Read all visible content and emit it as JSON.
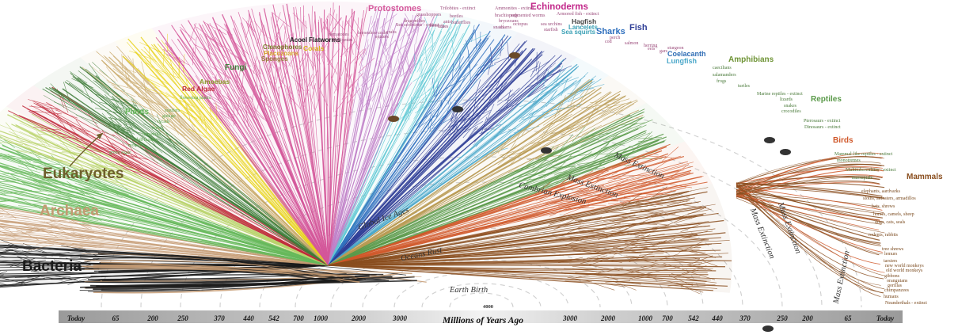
{
  "diagram": {
    "main_groups": {
      "bacteria": "Bacteria",
      "archaea": "Archaea",
      "eukaryotes": "Eukaryotes"
    },
    "clades": {
      "plants": "Plants",
      "red_algae": "Red Algae",
      "amoebas": "Amoebas",
      "fungi": "Fungi",
      "sponges": "Sponges",
      "placozoans": "Placozoans",
      "ctenophores": "Ctenophores",
      "acoel_flatworms": "Acoel Flatworms",
      "corals": "Corals",
      "protostomes": "Protostomes",
      "echinoderms": "Echinoderms",
      "hagfish": "Hagfish",
      "lancelets": "Lancelets",
      "sea_squirts": "Sea squirts",
      "sharks": "Sharks",
      "fish": "Fish",
      "coelacanth": "Coelacanth",
      "lungfish": "Lungfish",
      "amphibians": "Amphibians",
      "reptiles": "Reptiles",
      "birds": "Birds",
      "mammals": "Mammals"
    },
    "small_labels": {
      "plants": [
        "conifers",
        "ginkgo",
        "cycads",
        "ferns",
        "horsetails",
        "club mosses",
        "mosses",
        "green algae",
        "flowering plants"
      ],
      "animals": [
        "nematodes",
        "centipedes",
        "horseshoe crabs",
        "spiders",
        "crabs",
        "Sea scorpions - extinct",
        "grasshoppers",
        "dragonflies",
        "beetles",
        "ants",
        "bees",
        "lice",
        "butterflies",
        "flies",
        "Trilobites - extinct",
        "Ammonites - extinct",
        "brachiopods",
        "bryozoans",
        "snails",
        "clams",
        "octopus",
        "segmented worms",
        "sea urchins",
        "starfish",
        "Armored fish - extinct",
        "cod",
        "perch",
        "salmon",
        "herring",
        "eels",
        "gars",
        "sturgeon"
      ],
      "tetrapods": [
        "caecilians",
        "salamanders",
        "frogs",
        "turtles",
        "Marine reptiles - extinct",
        "lizards",
        "snakes",
        "crocodiles",
        "Pterosaurs - extinct",
        "Dinosaurs - extinct",
        "Mammal-like reptiles - extinct",
        "monotremes",
        "Multituberculates - extinct",
        "marsupials"
      ],
      "mammals": [
        "elephants, aardvarks",
        "sloths, anteaters, armadillos",
        "bats, shrews",
        "horses, camels, sheep",
        "dogs, cats, seals",
        "rodents, rabbits",
        "tree shrews",
        "lemurs",
        "tarsiers",
        "new world monkeys",
        "old world monkeys",
        "gibbons",
        "orangutans",
        "gorillas",
        "chimpanzees",
        "humans",
        "Neanderthals - extinct"
      ]
    },
    "events": {
      "earth_birth": "Earth Birth",
      "oceans_rust": "Oceans Rust",
      "global_ice_ages": "Global Ice Ages",
      "cambrian_explosion": "Cambrian Explosion",
      "mass_extinction": "Mass Extinction"
    },
    "center_value": "4000",
    "axis": {
      "title": "Millions of Years Ago",
      "ticks_left": [
        "Today",
        "65",
        "200",
        "250",
        "370",
        "440",
        "542",
        "700",
        "1000",
        "2000",
        "3000"
      ],
      "ticks_right": [
        "3000",
        "2000",
        "1000",
        "700",
        "542",
        "440",
        "370",
        "250",
        "200",
        "65",
        "Today"
      ]
    },
    "colors": {
      "bacteria": "#1a1a1a",
      "archaea": "#c49a72",
      "eukaryotes": "#6e5f2c",
      "plants": "#66b85a",
      "fungi": "#3f7d3a",
      "red_algae": "#c0293a",
      "corals": "#e8d21e",
      "protostomes": "#d4579a",
      "echinoderms": "#c2288a",
      "sharks": "#2e6fbd",
      "fish": "#2f3e96",
      "coelacanth": "#2f6db5",
      "lungfish": "#4aa7c9",
      "amphibians": "#6f9436",
      "reptiles": "#5b9a4a",
      "birds": "#d0582a",
      "mammals": "#8a4e1e"
    }
  }
}
